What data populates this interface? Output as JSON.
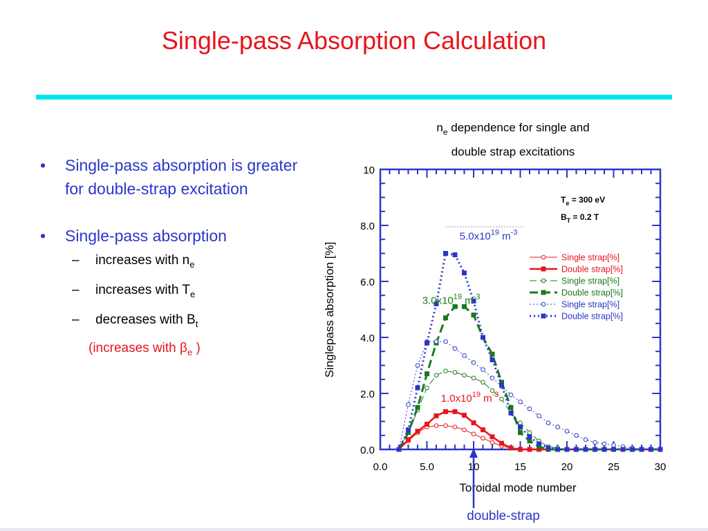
{
  "slide": {
    "title": "Single-pass Absorption Calculation",
    "accent_color": "#00e4ee",
    "title_color": "#e8141b",
    "bullet_color": "#2a36c8"
  },
  "bullets": {
    "b1_marker": "•",
    "b1_text": "Single-pass absorption is greater for double-strap excitation",
    "b2_marker": "•",
    "b2_text": "Single-pass absorption",
    "subs": [
      {
        "dash": "–",
        "text": "increases with n",
        "subscript": "e"
      },
      {
        "dash": "–",
        "text": "increases with T",
        "subscript": "e"
      },
      {
        "dash": "–",
        "text": "decreases with B",
        "subscript": "t"
      }
    ],
    "note_prefix": "(increases with ",
    "note_symbol": "β",
    "note_subscript": "e",
    "note_suffix": " )"
  },
  "chart_data": {
    "type": "line",
    "title_line1_n": "n",
    "title_line1_sub": "e",
    "title_line1_rest": " dependence for single and",
    "title_line2": "double strap excitations",
    "xlabel": "Toroidal mode number",
    "ylabel": "Singlepass absorption [%]",
    "xlim": [
      0,
      30
    ],
    "ylim": [
      0,
      10
    ],
    "x_ticks": [
      {
        "v": 0,
        "label": "0.0"
      },
      {
        "v": 5,
        "label": "5.0"
      },
      {
        "v": 10,
        "label": "10"
      },
      {
        "v": 15,
        "label": "15"
      },
      {
        "v": 20,
        "label": "20"
      },
      {
        "v": 25,
        "label": "25"
      },
      {
        "v": 30,
        "label": "30"
      }
    ],
    "y_ticks": [
      {
        "v": 0,
        "label": "0.0"
      },
      {
        "v": 2,
        "label": "2.0"
      },
      {
        "v": 4,
        "label": "4.0"
      },
      {
        "v": 6,
        "label": "6.0"
      },
      {
        "v": 8,
        "label": "8.0"
      },
      {
        "v": 10,
        "label": "10"
      }
    ],
    "params": {
      "te_label": "T",
      "te_sub": "e",
      "te_value": " = 300 eV",
      "bt_label": "B",
      "bt_sub": "T",
      "bt_value": " = 0.2 T"
    },
    "density_labels": [
      {
        "mant": "1.0x10",
        "exp": "19",
        "unit": " m",
        "uexp": "-3",
        "color": "#e8141b",
        "x": 9.6,
        "y": 1.7
      },
      {
        "mant": "3.0x10",
        "exp": "19",
        "unit": " m",
        "uexp": "-3",
        "color": "#1a7a1a",
        "x": 7.6,
        "y": 5.2
      },
      {
        "mant": "5.0x10",
        "exp": "19",
        "unit": " m",
        "uexp": "-3",
        "color": "#2a36c8",
        "x": 11.6,
        "y": 7.5
      }
    ],
    "annotation": {
      "text": "double-strap",
      "x": 10
    },
    "legend_position": "right",
    "series": [
      {
        "name": "Single strap[%]",
        "color": "#e8141b",
        "dash": "",
        "marker": "open-circle",
        "width": 1,
        "x": [
          2,
          3,
          4,
          5,
          6,
          7,
          8,
          9,
          10,
          11,
          12,
          13,
          14,
          15,
          16,
          17,
          18,
          19,
          20,
          21,
          22,
          23,
          24,
          25,
          26,
          27,
          28,
          29,
          30
        ],
        "y": [
          0,
          0.3,
          0.6,
          0.8,
          0.85,
          0.85,
          0.8,
          0.7,
          0.55,
          0.4,
          0.25,
          0.12,
          0.05,
          0.02,
          0,
          0,
          0,
          0,
          0,
          0,
          0,
          0,
          0,
          0,
          0,
          0,
          0,
          0,
          0
        ]
      },
      {
        "name": "Double strap[%]",
        "color": "#e8141b",
        "dash": "",
        "marker": "filled-square",
        "width": 2.5,
        "x": [
          2,
          3,
          4,
          5,
          6,
          7,
          8,
          9,
          10,
          11,
          12,
          13,
          14,
          15,
          16,
          17,
          18,
          19,
          20,
          21,
          22,
          23,
          24,
          25,
          26,
          27,
          28,
          29,
          30
        ],
        "y": [
          0,
          0.35,
          0.65,
          0.9,
          1.2,
          1.35,
          1.35,
          1.22,
          0.95,
          0.7,
          0.45,
          0.22,
          0.05,
          0,
          0,
          0,
          0,
          0,
          0,
          0,
          0,
          0,
          0,
          0,
          0,
          0,
          0,
          0,
          0
        ]
      },
      {
        "name": "Single strap[%]",
        "color": "#1a7a1a",
        "dash": "10,5",
        "marker": "open-circle",
        "width": 1,
        "x": [
          2,
          3,
          4,
          5,
          6,
          7,
          8,
          9,
          10,
          11,
          12,
          13,
          14,
          15,
          16,
          17,
          18,
          19,
          20,
          21,
          22,
          23,
          24,
          25,
          26,
          27,
          28,
          29,
          30
        ],
        "y": [
          0,
          0.6,
          1.4,
          2.2,
          2.65,
          2.8,
          2.75,
          2.65,
          2.55,
          2.4,
          2.1,
          1.8,
          1.3,
          0.95,
          0.6,
          0.3,
          0.1,
          0.05,
          0,
          0,
          0,
          0,
          0,
          0,
          0,
          0,
          0,
          0,
          0
        ]
      },
      {
        "name": "Double strap[%]",
        "color": "#1a7a1a",
        "dash": "12,6",
        "marker": "filled-square",
        "width": 3,
        "x": [
          2,
          3,
          4,
          5,
          6,
          7,
          8,
          9,
          10,
          11,
          12,
          13,
          14,
          15,
          16,
          17,
          18,
          19,
          20,
          21,
          22,
          23,
          24,
          25,
          26,
          27,
          28,
          29,
          30
        ],
        "y": [
          0,
          0.6,
          1.5,
          2.7,
          3.8,
          4.7,
          5.1,
          5.1,
          4.8,
          4.0,
          3.4,
          2.4,
          1.5,
          0.6,
          0.3,
          0.1,
          0,
          0,
          0,
          0,
          0,
          0,
          0,
          0,
          0,
          0,
          0,
          0,
          0
        ]
      },
      {
        "name": "Single strap[%]",
        "color": "#2a36c8",
        "dash": "2,3",
        "marker": "open-circle",
        "width": 1,
        "x": [
          2,
          3,
          4,
          5,
          6,
          7,
          8,
          9,
          10,
          11,
          12,
          13,
          14,
          15,
          16,
          17,
          18,
          19,
          20,
          21,
          22,
          23,
          24,
          25,
          26,
          27,
          28,
          29,
          30
        ],
        "y": [
          0,
          1.6,
          3.0,
          3.85,
          3.85,
          3.85,
          3.6,
          3.35,
          3.1,
          2.85,
          2.55,
          2.25,
          1.95,
          1.7,
          1.45,
          1.2,
          0.95,
          0.8,
          0.65,
          0.5,
          0.35,
          0.25,
          0.2,
          0.15,
          0.1,
          0.05,
          0,
          0,
          0
        ]
      },
      {
        "name": "Double strap[%]",
        "color": "#2a36c8",
        "dash": "2,4",
        "marker": "filled-square",
        "width": 3,
        "x": [
          2,
          3,
          4,
          5,
          6,
          7,
          8,
          9,
          10,
          11,
          12,
          13,
          14,
          15,
          16,
          17,
          18,
          19,
          20,
          21,
          22,
          23,
          24,
          25,
          26,
          27,
          28,
          29,
          30
        ],
        "y": [
          0,
          0.7,
          2.2,
          3.8,
          5.2,
          7.0,
          6.95,
          6.3,
          5.3,
          4.0,
          3.2,
          2.3,
          1.3,
          0.8,
          0.45,
          0.2,
          0.05,
          0,
          0,
          0,
          0,
          0,
          0,
          0,
          0,
          0,
          0,
          0,
          0
        ]
      }
    ]
  }
}
